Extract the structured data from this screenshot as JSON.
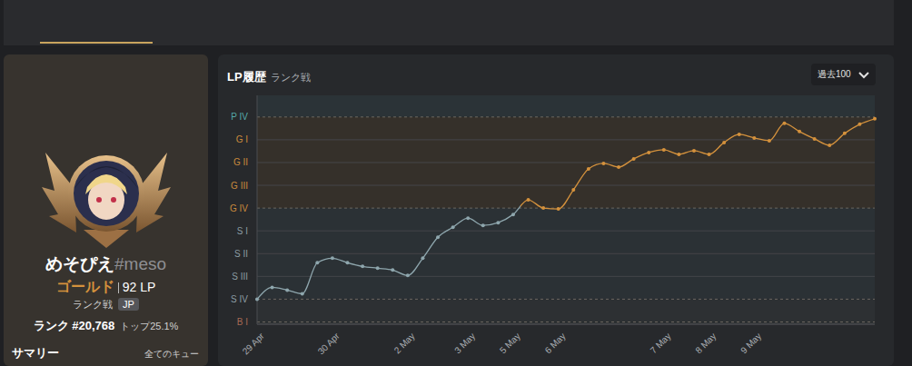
{
  "profile": {
    "name": "めそぴえ",
    "tag": "#meso",
    "tier": "ゴールド",
    "lp": "92 LP",
    "queue": "ランク戦",
    "region": "JP",
    "rank": "ランク #20,768",
    "top": "トップ25.1%",
    "summary": "サマリー",
    "summary_filter": "全てのキュー"
  },
  "panel": {
    "title": "LP履歴",
    "subtitle": "ランク戦",
    "dropdown": "過去100"
  },
  "chart_data": {
    "type": "line",
    "x": [
      "29 Apr",
      null,
      null,
      null,
      null,
      "30 Apr",
      null,
      null,
      null,
      null,
      "2 May",
      null,
      null,
      null,
      "3 May",
      null,
      null,
      "5 May",
      null,
      null,
      "6 May",
      null,
      null,
      null,
      null,
      null,
      null,
      "7 May",
      null,
      null,
      "8 May",
      null,
      null,
      "9 May",
      null,
      null,
      null,
      null,
      null,
      null,
      null,
      null
    ],
    "values": [
      100,
      152,
      140,
      124,
      260,
      280,
      260,
      244,
      236,
      228,
      204,
      280,
      372,
      416,
      456,
      424,
      436,
      472,
      536,
      500,
      496,
      580,
      672,
      696,
      680,
      716,
      744,
      756,
      736,
      752,
      736,
      788,
      824,
      808,
      796,
      872,
      836,
      804,
      776,
      828,
      868,
      892
    ],
    "colors": [
      "#8ea6ad",
      "#8ea6ad",
      "#8ea6ad",
      "#8ea6ad",
      "#8ea6ad",
      "#8ea6ad",
      "#8ea6ad",
      "#8ea6ad",
      "#8ea6ad",
      "#8ea6ad",
      "#8ea6ad",
      "#8ea6ad",
      "#8ea6ad",
      "#8ea6ad",
      "#8ea6ad",
      "#8ea6ad",
      "#8ea6ad",
      "#8ea6ad",
      "#d4913c",
      "#d4913c",
      "#d4913c",
      "#d4913c",
      "#d4913c",
      "#d4913c",
      "#d4913c",
      "#d4913c",
      "#d4913c",
      "#d4913c",
      "#d4913c",
      "#d4913c",
      "#d4913c",
      "#d4913c",
      "#d4913c",
      "#d4913c",
      "#d4913c",
      "#d4913c",
      "#d4913c",
      "#d4913c",
      "#d4913c",
      "#d4913c",
      "#d4913c",
      "#d4913c"
    ],
    "ylim": [
      -10,
      995
    ],
    "yticks": [
      {
        "value": 0,
        "label": "B I"
      },
      {
        "value": 100,
        "label": "S IV"
      },
      {
        "value": 200,
        "label": "S III"
      },
      {
        "value": 300,
        "label": "S II"
      },
      {
        "value": 400,
        "label": "S I"
      },
      {
        "value": 500,
        "label": "G IV"
      },
      {
        "value": 600,
        "label": "G III"
      },
      {
        "value": 700,
        "label": "G II"
      },
      {
        "value": 800,
        "label": "G I"
      },
      {
        "value": 900,
        "label": "P IV"
      }
    ],
    "grid": true,
    "marker": "circle",
    "line_style": "solid"
  }
}
